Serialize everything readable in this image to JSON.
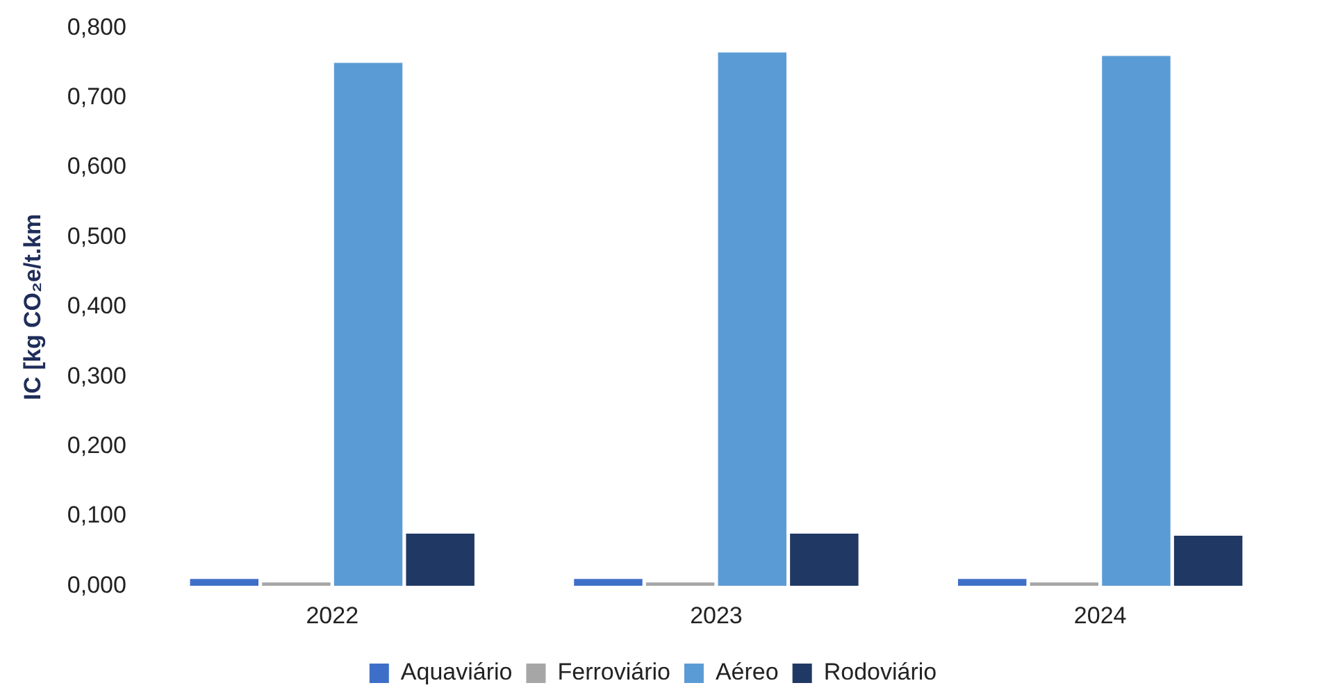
{
  "chart_data": {
    "type": "bar",
    "ylabel": "IC [kg CO₂e/t.km",
    "categories": [
      "2022",
      "2023",
      "2024"
    ],
    "series": [
      {
        "name": "Aquaviário",
        "color": "#3e6fc8",
        "values": [
          0.01,
          0.01,
          0.01
        ]
      },
      {
        "name": "Ferroviário",
        "color": "#a6a6a6",
        "values": [
          0.005,
          0.005,
          0.005
        ]
      },
      {
        "name": "Aéreo",
        "color": "#5b9bd5",
        "values": [
          0.75,
          0.765,
          0.76
        ]
      },
      {
        "name": "Rodoviário",
        "color": "#203864",
        "values": [
          0.075,
          0.075,
          0.072
        ]
      }
    ],
    "ylim": [
      0,
      0.8
    ],
    "yticks": [
      {
        "value": 0,
        "label": "0,000"
      },
      {
        "value": 0.1,
        "label": "0,100"
      },
      {
        "value": 0.2,
        "label": "0,200"
      },
      {
        "value": 0.3,
        "label": "0,300"
      },
      {
        "value": 0.4,
        "label": "0,400"
      },
      {
        "value": 0.5,
        "label": "0,500"
      },
      {
        "value": 0.6,
        "label": "0,600"
      },
      {
        "value": 0.7,
        "label": "0,700"
      },
      {
        "value": 0.8,
        "label": "0,800"
      }
    ],
    "grid": false,
    "legend": "bottom"
  }
}
